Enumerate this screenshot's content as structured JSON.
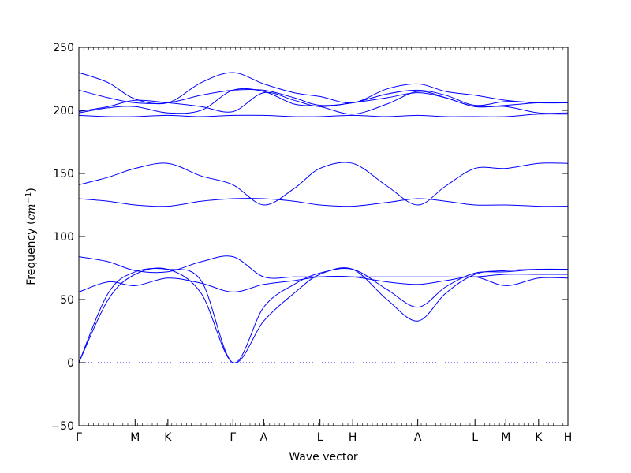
{
  "chart_data": {
    "type": "line",
    "xlabel": "Wave vector",
    "ylabel_text": "Frequency (",
    "ylabel_unit": "cm",
    "ylabel_exp": "−1",
    "ylabel_close": ")",
    "ylim": [
      -50,
      250
    ],
    "yticks": [
      -50,
      0,
      50,
      100,
      150,
      200,
      250
    ],
    "ytick_labels": [
      "−50",
      "0",
      "50",
      "100",
      "150",
      "200",
      "250"
    ],
    "high_symmetry_points": [
      {
        "label": "Γ",
        "x": 0.0
      },
      {
        "label": "M",
        "x": 0.115
      },
      {
        "label": "K",
        "x": 0.182
      },
      {
        "label": "Γ",
        "x": 0.315
      },
      {
        "label": "A",
        "x": 0.378
      },
      {
        "label": "L",
        "x": 0.493
      },
      {
        "label": "H",
        "x": 0.56
      },
      {
        "label": "A",
        "x": 0.693
      },
      {
        "label": "L",
        "x": 0.81
      },
      {
        "label": "M",
        "x": 0.873
      },
      {
        "label": "K",
        "x": 0.94
      },
      {
        "label": "H",
        "x": 1.0
      }
    ],
    "zero_line": {
      "y": 0,
      "style": "dotted"
    },
    "grid": false,
    "legend": "none",
    "line_color": "#0000ff",
    "series": [
      {
        "x": [
          0,
          0.06,
          0.115,
          0.182,
          0.25,
          0.315,
          0.378,
          0.44,
          0.493,
          0.56,
          0.63,
          0.693,
          0.75,
          0.81,
          0.873,
          0.94,
          1.0
        ],
        "values": [
          0,
          50,
          70,
          74,
          55,
          0,
          33,
          55,
          70,
          74,
          50,
          33,
          55,
          70,
          73,
          74,
          74
        ]
      },
      {
        "x": [
          0,
          0.06,
          0.115,
          0.182,
          0.25,
          0.315,
          0.378,
          0.44,
          0.493,
          0.56,
          0.63,
          0.693,
          0.75,
          0.81,
          0.873,
          0.94,
          1.0
        ],
        "values": [
          0,
          55,
          72,
          74,
          65,
          0,
          44,
          62,
          71,
          74,
          58,
          44,
          60,
          71,
          72,
          74,
          74
        ]
      },
      {
        "x": [
          0,
          0.06,
          0.115,
          0.182,
          0.25,
          0.315,
          0.378,
          0.44,
          0.493,
          0.56,
          0.63,
          0.693,
          0.75,
          0.81,
          0.873,
          0.94,
          1.0
        ],
        "values": [
          56,
          64,
          61,
          67,
          63,
          56,
          62,
          65,
          68,
          68,
          64,
          62,
          65,
          68,
          61,
          67,
          67
        ]
      },
      {
        "x": [
          0,
          0.06,
          0.115,
          0.182,
          0.25,
          0.315,
          0.378,
          0.44,
          0.493,
          0.56,
          0.63,
          0.693,
          0.75,
          0.81,
          0.873,
          0.94,
          1.0
        ],
        "values": [
          84,
          80,
          73,
          72,
          80,
          84,
          68,
          68,
          68,
          68,
          68,
          68,
          68,
          68,
          70,
          70,
          70
        ]
      },
      {
        "x": [
          0,
          0.06,
          0.115,
          0.182,
          0.25,
          0.315,
          0.378,
          0.44,
          0.493,
          0.56,
          0.63,
          0.693,
          0.75,
          0.81,
          0.873,
          0.94,
          1.0
        ],
        "values": [
          130,
          128,
          125,
          124,
          128,
          130,
          130,
          128,
          125,
          124,
          127,
          130,
          128,
          125,
          125,
          124,
          124
        ]
      },
      {
        "x": [
          0,
          0.06,
          0.115,
          0.182,
          0.25,
          0.315,
          0.378,
          0.44,
          0.493,
          0.56,
          0.63,
          0.693,
          0.75,
          0.81,
          0.873,
          0.94,
          1.0
        ],
        "values": [
          141,
          147,
          154,
          158,
          148,
          141,
          125,
          138,
          154,
          158,
          140,
          125,
          140,
          154,
          154,
          158,
          158
        ]
      },
      {
        "x": [
          0,
          0.06,
          0.115,
          0.182,
          0.25,
          0.315,
          0.378,
          0.44,
          0.493,
          0.56,
          0.63,
          0.693,
          0.75,
          0.81,
          0.873,
          0.94,
          1.0
        ],
        "values": [
          196,
          195,
          195,
          196,
          195,
          196,
          196,
          195,
          195,
          196,
          195,
          196,
          195,
          195,
          195,
          197,
          197
        ]
      },
      {
        "x": [
          0,
          0.06,
          0.115,
          0.182,
          0.25,
          0.315,
          0.378,
          0.44,
          0.493,
          0.56,
          0.63,
          0.693,
          0.75,
          0.81,
          0.873,
          0.94,
          1.0
        ],
        "values": [
          198,
          202,
          203,
          198,
          200,
          216,
          215,
          205,
          203,
          197,
          205,
          215,
          210,
          203,
          203,
          198,
          198
        ]
      },
      {
        "x": [
          0,
          0.06,
          0.115,
          0.182,
          0.25,
          0.315,
          0.378,
          0.44,
          0.493,
          0.56,
          0.63,
          0.693,
          0.75,
          0.81,
          0.873,
          0.94,
          1.0
        ],
        "values": [
          216,
          210,
          206,
          206,
          212,
          216,
          216,
          210,
          204,
          206,
          213,
          216,
          212,
          204,
          207,
          206,
          206
        ]
      },
      {
        "x": [
          0,
          0.06,
          0.115,
          0.182,
          0.25,
          0.315,
          0.378,
          0.44,
          0.493,
          0.56,
          0.63,
          0.693,
          0.75,
          0.81,
          0.873,
          0.94,
          1.0
        ],
        "values": [
          230,
          222,
          209,
          206,
          222,
          230,
          221,
          214,
          211,
          206,
          217,
          221,
          215,
          212,
          208,
          206,
          206
        ]
      },
      {
        "x": [
          0,
          0.06,
          0.115,
          0.182,
          0.25,
          0.315,
          0.378,
          0.44,
          0.493,
          0.56,
          0.63,
          0.693,
          0.75,
          0.81,
          0.873,
          0.94,
          1.0
        ],
        "values": [
          199,
          203,
          208,
          206,
          203,
          199,
          214,
          208,
          203,
          206,
          210,
          214,
          210,
          203,
          204,
          206,
          206
        ]
      }
    ]
  }
}
